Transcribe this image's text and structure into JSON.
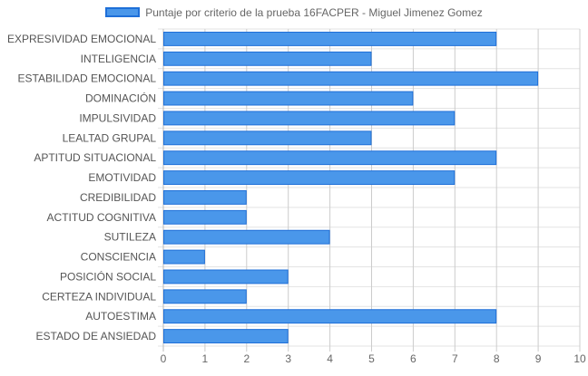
{
  "chart_data": {
    "type": "bar",
    "orientation": "horizontal",
    "categories": [
      "EXPRESIVIDAD EMOCIONAL",
      "INTELIGENCIA",
      "ESTABILIDAD EMOCIONAL",
      "DOMINACIÓN",
      "IMPULSIVIDAD",
      "LEALTAD GRUPAL",
      "APTITUD SITUACIONAL",
      "EMOTIVIDAD",
      "CREDIBILIDAD",
      "ACTITUD COGNITIVA",
      "SUTILEZA",
      "CONSCIENCIA",
      "POSICIÓN SOCIAL",
      "CERTEZA INDIVIDUAL",
      "AUTOESTIMA",
      "ESTADO DE ANSIEDAD"
    ],
    "series": [
      {
        "name": "Puntaje por criterio de la prueba 16FACPER - Miguel Jimenez Gomez",
        "values": [
          8,
          5,
          9,
          6,
          7,
          5,
          8,
          7,
          2,
          2,
          4,
          1,
          3,
          2,
          8,
          3
        ],
        "color": "#4a97ea",
        "border_color": "#1e6fd8"
      }
    ],
    "xlim": [
      0,
      10
    ],
    "x_ticks": [
      "0",
      "1",
      "2",
      "3",
      "4",
      "5",
      "6",
      "7",
      "8",
      "9",
      "10"
    ],
    "grid": true,
    "legend_position": "top"
  }
}
